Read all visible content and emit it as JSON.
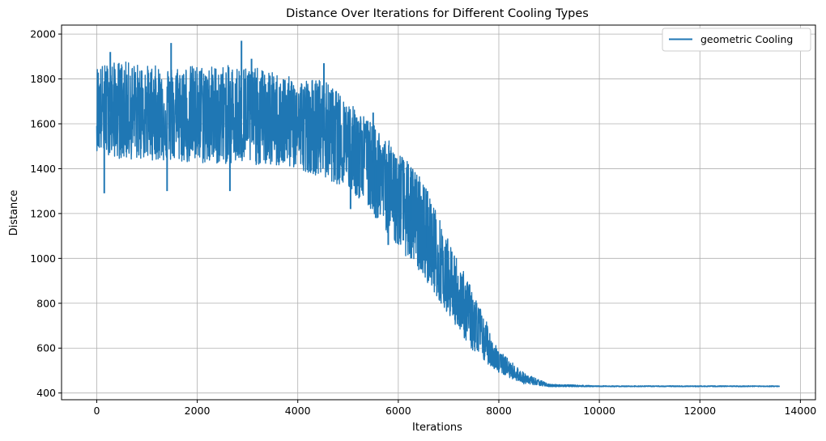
{
  "chart_data": {
    "type": "line",
    "title": "Distance Over Iterations for Different Cooling Types",
    "xlabel": "Iterations",
    "ylabel": "Distance",
    "xlim": [
      -700,
      14300
    ],
    "ylim": [
      370,
      2040
    ],
    "xticks": [
      0,
      2000,
      4000,
      6000,
      8000,
      10000,
      12000,
      14000
    ],
    "yticks": [
      400,
      600,
      800,
      1000,
      1200,
      1400,
      1600,
      1800,
      2000
    ],
    "grid": true,
    "legend_position": "top-right",
    "series": [
      {
        "name": "geometric Cooling",
        "color": "#1f77b4",
        "x_range": [
          0,
          13590
        ],
        "envelope": {
          "x": [
            0,
            500,
            1000,
            2000,
            3000,
            4000,
            4500,
            5000,
            5500,
            6000,
            6500,
            7000,
            7500,
            8000,
            8500,
            9000,
            10000,
            13590
          ],
          "min": [
            1480,
            1440,
            1440,
            1420,
            1420,
            1400,
            1360,
            1310,
            1200,
            1050,
            920,
            750,
            580,
            490,
            440,
            428,
            428,
            428
          ],
          "max": [
            1860,
            1880,
            1860,
            1860,
            1860,
            1800,
            1800,
            1700,
            1600,
            1480,
            1350,
            1080,
            850,
            590,
            490,
            440,
            432,
            432
          ],
          "center": [
            1660,
            1650,
            1650,
            1640,
            1620,
            1600,
            1580,
            1520,
            1430,
            1260,
            1080,
            880,
            680,
            540,
            460,
            432,
            430,
            430
          ]
        },
        "spikes": [
          [
            150,
            1290
          ],
          [
            1400,
            1300
          ],
          [
            2650,
            1300
          ],
          [
            5050,
            1220
          ],
          [
            5550,
            1180
          ],
          [
            5800,
            1060
          ],
          [
            6100,
            1080
          ],
          [
            6100,
            1290
          ],
          [
            1480,
            1960
          ],
          [
            2880,
            1970
          ],
          [
            4520,
            1870
          ],
          [
            270,
            1920
          ],
          [
            3080,
            1890
          ],
          [
            5500,
            1650
          ],
          [
            6250,
            1400
          ],
          [
            6580,
            1300
          ]
        ]
      }
    ]
  }
}
